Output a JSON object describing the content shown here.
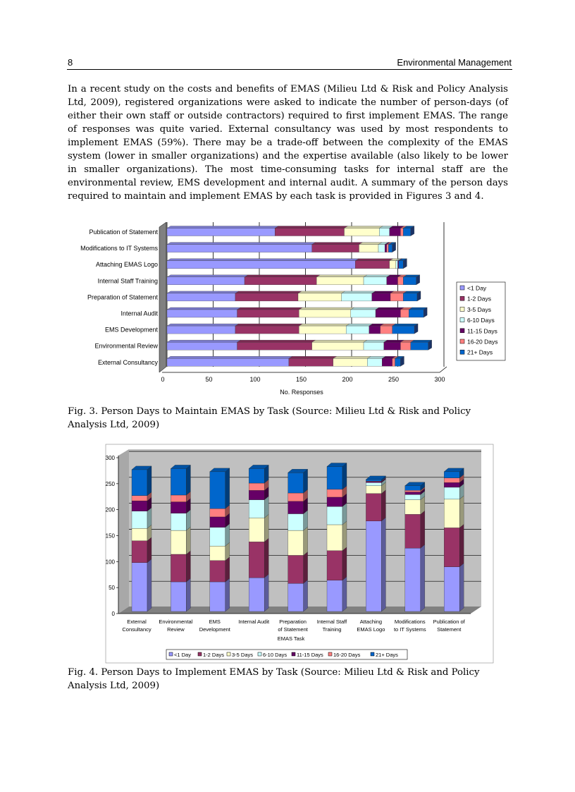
{
  "header": {
    "page_number": "8",
    "running_title": "Environmental Management"
  },
  "body_text": "In a recent study on the costs and benefits of EMAS (Milieu Ltd & Risk and Policy Analysis Ltd, 2009), registered organizations were asked to indicate the number of person-days (of either their own staff or outside contractors) required to first implement EMAS. The range of responses was quite varied. External consultancy was used by most respondents to implement EMAS (59%). There may be a trade-off between the complexity of the EMAS system (lower in smaller organizations) and the expertise available (also likely to be lower in smaller organizations). The most time-consuming tasks for internal staff are the environmental review, EMS development and internal audit. A summary of the person days required to maintain and implement EMAS by each task is provided in Figures 3 and 4.",
  "captions": {
    "fig3": "Fig. 3. Person Days to Maintain EMAS by Task (Source: Milieu Ltd & Risk and Policy Analysis Ltd, 2009)",
    "fig4": "Fig. 4. Person Days to Implement EMAS by Task (Source: Milieu Ltd & Risk and Policy Analysis Ltd, 2009)"
  },
  "chart_data": [
    {
      "type": "bar",
      "orientation": "horizontal",
      "stacked": true,
      "xlabel": "No. Responses",
      "ylabel": "",
      "xlim": [
        0,
        300
      ],
      "xticks": [
        0,
        50,
        100,
        150,
        200,
        250,
        300
      ],
      "grid": true,
      "legend": "right",
      "categories": [
        "Publication of Statement",
        "Modifications to IT Systems",
        "Attaching EMAS Logo",
        "Internal Staff Training",
        "Preparation of Statement",
        "Internal Audit",
        "EMS Development",
        "Environmental Review",
        "External Consultancy"
      ],
      "series": [
        {
          "name": "<1 Day",
          "color": "#9999ff",
          "values": [
            117,
            157,
            204,
            84,
            74,
            76,
            74,
            76,
            132
          ]
        },
        {
          "name": "1-2 Days",
          "color": "#993366",
          "values": [
            75,
            51,
            37,
            78,
            68,
            67,
            69,
            81,
            48
          ]
        },
        {
          "name": "3-5 Days",
          "color": "#ffffcc",
          "values": [
            38,
            21,
            7,
            51,
            47,
            56,
            51,
            56,
            37
          ]
        },
        {
          "name": "6-10 Days",
          "color": "#ccffff",
          "values": [
            11,
            7,
            2,
            25,
            33,
            27,
            25,
            22,
            16
          ]
        },
        {
          "name": "11-15 Days",
          "color": "#660066",
          "values": [
            12,
            2,
            1,
            12,
            20,
            27,
            12,
            18,
            11
          ]
        },
        {
          "name": "16-20 Days",
          "color": "#ff8080",
          "values": [
            3,
            2,
            0,
            6,
            14,
            9,
            13,
            11,
            3
          ]
        },
        {
          "name": "21+ Days",
          "color": "#0066cc",
          "values": [
            8,
            4,
            5,
            14,
            15,
            16,
            24,
            19,
            6
          ]
        }
      ]
    },
    {
      "type": "bar",
      "orientation": "vertical",
      "stacked": true,
      "xlabel": "EMAS Task",
      "ylabel": "",
      "ylim": [
        0,
        300
      ],
      "yticks": [
        0,
        50,
        100,
        150,
        200,
        250,
        300
      ],
      "grid": true,
      "legend": "bottom",
      "categories": [
        [
          "External",
          "Consultancy"
        ],
        [
          "Environmental",
          "Review"
        ],
        [
          "EMS",
          "Development"
        ],
        [
          "Internal Audit",
          ""
        ],
        [
          "Preparation",
          "of Statement"
        ],
        [
          "Internal Staff",
          "Training"
        ],
        [
          "Attaching",
          "EMAS Logo"
        ],
        [
          "Modifications",
          "to IT Systems"
        ],
        [
          "Publication of",
          "Statement"
        ]
      ],
      "series": [
        {
          "name": "<1 Day",
          "color": "#9999ff",
          "values": [
            94,
            57,
            57,
            65,
            54,
            60,
            174,
            122,
            86
          ]
        },
        {
          "name": "1-2 Days",
          "color": "#993366",
          "values": [
            42,
            53,
            41,
            69,
            54,
            57,
            53,
            65,
            75
          ]
        },
        {
          "name": "3-5 Days",
          "color": "#ffffcc",
          "values": [
            24,
            46,
            28,
            46,
            48,
            50,
            15,
            28,
            55
          ]
        },
        {
          "name": "6-10 Days",
          "color": "#ccffff",
          "values": [
            33,
            33,
            36,
            35,
            32,
            35,
            6,
            10,
            23
          ]
        },
        {
          "name": "11-15 Days",
          "color": "#660066",
          "values": [
            20,
            22,
            20,
            18,
            24,
            18,
            2,
            5,
            9
          ]
        },
        {
          "name": "16-20 Days",
          "color": "#ff8080",
          "values": [
            10,
            13,
            16,
            14,
            16,
            15,
            1,
            3,
            9
          ]
        },
        {
          "name": "21+ Days",
          "color": "#0066cc",
          "values": [
            50,
            51,
            71,
            28,
            39,
            44,
            3,
            9,
            12
          ]
        }
      ]
    }
  ]
}
